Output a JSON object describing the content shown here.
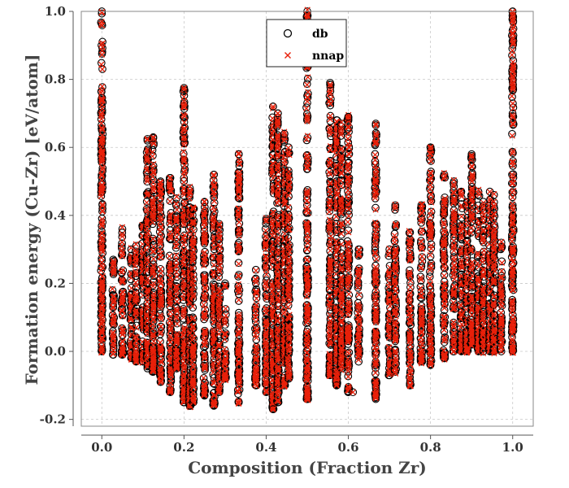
{
  "chart_data": {
    "type": "scatter",
    "title": "",
    "xlabel": "Composition (Fraction Zr)",
    "ylabel": "Formation energy (Cu-Zr) [eV/atom]",
    "xlim": [
      -0.05,
      1.05
    ],
    "ylim": [
      -0.22,
      1.0
    ],
    "grid": true,
    "legend_position": "top-center",
    "x_ticks": [
      0.0,
      0.2,
      0.4,
      0.6,
      0.8,
      1.0
    ],
    "x_tick_labels": [
      "0.0",
      "0.2",
      "0.4",
      "0.6",
      "0.8",
      "1.0"
    ],
    "y_ticks": [
      -0.2,
      0.0,
      0.2,
      0.4,
      0.6,
      0.8,
      1.0
    ],
    "y_tick_labels": [
      "-0.2",
      "0.0",
      "0.2",
      "0.4",
      "0.6",
      "0.8",
      "1.0"
    ],
    "series": [
      {
        "name": "db",
        "marker": "circle",
        "color": "#000000"
      },
      {
        "name": "nnap",
        "marker": "x",
        "color": "#e8200a"
      }
    ],
    "composition_columns": [
      {
        "x": 0.0,
        "ymin": 0.0,
        "ymax": 1.0
      },
      {
        "x": 0.0278,
        "ymin": -0.01,
        "ymax": 0.27
      },
      {
        "x": 0.05,
        "ymin": -0.01,
        "ymax": 0.36
      },
      {
        "x": 0.0714,
        "ymin": -0.02,
        "ymax": 0.3
      },
      {
        "x": 0.0833,
        "ymin": -0.03,
        "ymax": 0.31
      },
      {
        "x": 0.1,
        "ymin": -0.03,
        "ymax": 0.37
      },
      {
        "x": 0.1111,
        "ymin": -0.05,
        "ymax": 0.62
      },
      {
        "x": 0.125,
        "ymin": -0.06,
        "ymax": 0.63
      },
      {
        "x": 0.1429,
        "ymin": -0.09,
        "ymax": 0.5
      },
      {
        "x": 0.1667,
        "ymin": -0.12,
        "ymax": 0.51
      },
      {
        "x": 0.1818,
        "ymin": -0.05,
        "ymax": 0.45
      },
      {
        "x": 0.2,
        "ymin": -0.15,
        "ymax": 0.77
      },
      {
        "x": 0.2143,
        "ymin": -0.16,
        "ymax": 0.48
      },
      {
        "x": 0.2222,
        "ymin": -0.15,
        "ymax": 0.42
      },
      {
        "x": 0.25,
        "ymin": -0.13,
        "ymax": 0.44
      },
      {
        "x": 0.2727,
        "ymin": -0.16,
        "ymax": 0.52
      },
      {
        "x": 0.2857,
        "ymin": -0.12,
        "ymax": 0.37
      },
      {
        "x": 0.3,
        "ymin": -0.08,
        "ymax": 0.2
      },
      {
        "x": 0.3333,
        "ymin": -0.15,
        "ymax": 0.58
      },
      {
        "x": 0.375,
        "ymin": -0.1,
        "ymax": 0.24
      },
      {
        "x": 0.4,
        "ymin": -0.12,
        "ymax": 0.39
      },
      {
        "x": 0.4167,
        "ymin": -0.17,
        "ymax": 0.72
      },
      {
        "x": 0.4286,
        "ymin": -0.15,
        "ymax": 0.7
      },
      {
        "x": 0.4444,
        "ymin": -0.1,
        "ymax": 0.64
      },
      {
        "x": 0.4545,
        "ymin": -0.08,
        "ymax": 0.6
      },
      {
        "x": 0.5,
        "ymin": -0.14,
        "ymax": 1.0
      },
      {
        "x": 0.5556,
        "ymin": -0.07,
        "ymax": 0.79
      },
      {
        "x": 0.5714,
        "ymin": -0.1,
        "ymax": 0.68
      },
      {
        "x": 0.5833,
        "ymin": -0.05,
        "ymax": 0.67
      },
      {
        "x": 0.6,
        "ymin": -0.12,
        "ymax": 0.69
      },
      {
        "x": 0.625,
        "ymin": -0.03,
        "ymax": 0.3
      },
      {
        "x": 0.6667,
        "ymin": -0.14,
        "ymax": 0.67
      },
      {
        "x": 0.7,
        "ymin": -0.07,
        "ymax": 0.3
      },
      {
        "x": 0.7143,
        "ymin": -0.06,
        "ymax": 0.43
      },
      {
        "x": 0.75,
        "ymin": -0.1,
        "ymax": 0.35
      },
      {
        "x": 0.7778,
        "ymin": -0.03,
        "ymax": 0.43
      },
      {
        "x": 0.8,
        "ymin": -0.04,
        "ymax": 0.6
      },
      {
        "x": 0.8333,
        "ymin": -0.02,
        "ymax": 0.52
      },
      {
        "x": 0.8571,
        "ymin": 0.0,
        "ymax": 0.5
      },
      {
        "x": 0.875,
        "ymin": 0.0,
        "ymax": 0.47
      },
      {
        "x": 0.8889,
        "ymin": 0.0,
        "ymax": 0.44
      },
      {
        "x": 0.9,
        "ymin": 0.02,
        "ymax": 0.58
      },
      {
        "x": 0.9167,
        "ymin": 0.0,
        "ymax": 0.47
      },
      {
        "x": 0.9286,
        "ymin": 0.0,
        "ymax": 0.44
      },
      {
        "x": 0.9444,
        "ymin": 0.0,
        "ymax": 0.47
      },
      {
        "x": 0.9545,
        "ymin": 0.0,
        "ymax": 0.46
      },
      {
        "x": 0.9722,
        "ymin": 0.0,
        "ymax": 0.32
      },
      {
        "x": 1.0,
        "ymin": 0.0,
        "ymax": 1.0
      }
    ],
    "scattered_points": [
      {
        "x": 0.2,
        "y": 0.775
      },
      {
        "x": 0.2,
        "y": 0.627
      },
      {
        "x": 0.1111,
        "y": 0.625
      },
      {
        "x": 0.125,
        "y": 0.627
      },
      {
        "x": 0.1667,
        "y": 0.51
      },
      {
        "x": 0.2727,
        "y": 0.52
      },
      {
        "x": 0.3333,
        "y": 0.58
      },
      {
        "x": 0.4167,
        "y": 0.72
      },
      {
        "x": 0.4286,
        "y": 0.7
      },
      {
        "x": 0.4444,
        "y": 0.64
      },
      {
        "x": 0.5556,
        "y": 0.785
      },
      {
        "x": 0.6,
        "y": 0.69
      },
      {
        "x": 0.6667,
        "y": 0.665
      },
      {
        "x": 0.8,
        "y": 0.6
      },
      {
        "x": 0.9,
        "y": 0.575
      },
      {
        "x": 0.9,
        "y": 0.545
      },
      {
        "x": 0.2857,
        "y": 0.375
      },
      {
        "x": 0.4,
        "y": 0.385
      },
      {
        "x": 0.7143,
        "y": 0.425
      },
      {
        "x": 0.6,
        "y": 0.435
      },
      {
        "x": 0.6111,
        "y": -0.12
      },
      {
        "x": 0.5714,
        "y": -0.1
      },
      {
        "x": 0.2143,
        "y": -0.16
      },
      {
        "x": 0.4167,
        "y": -0.17
      }
    ]
  }
}
